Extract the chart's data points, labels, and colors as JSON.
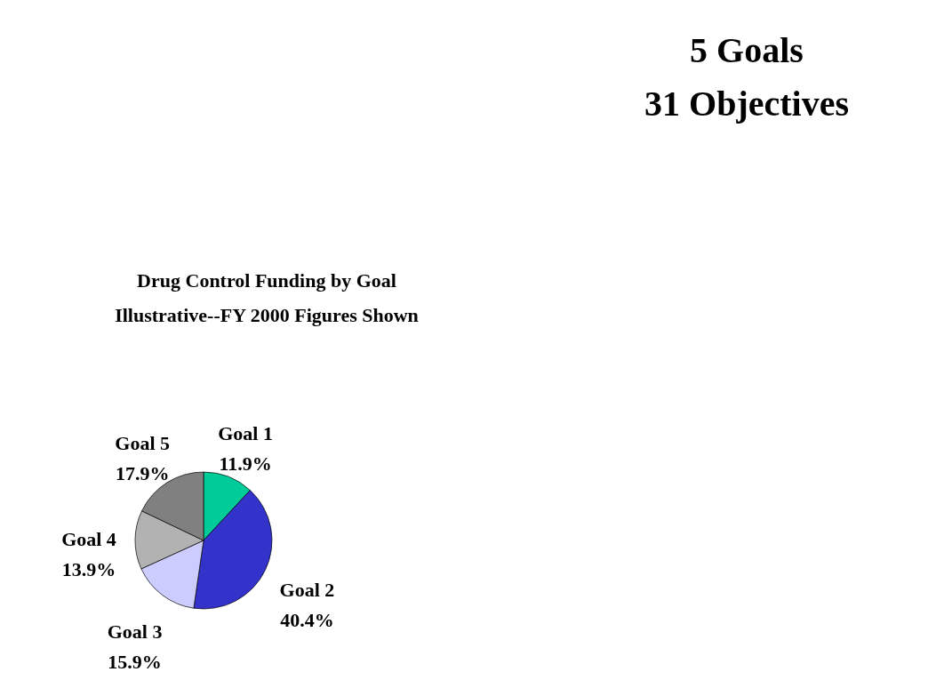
{
  "chart_data": {
    "type": "pie",
    "title": "Drug Control Funding by Goal",
    "subtitle": "Illustrative--FY 2000 Figures Shown",
    "categories": [
      "Goal 1",
      "Goal 2",
      "Goal 3",
      "Goal 4",
      "Goal 5"
    ],
    "values": [
      11.9,
      40.4,
      15.9,
      13.9,
      17.9
    ],
    "value_labels": [
      "11.9%",
      "40.4%",
      "15.9%",
      "13.9%",
      "17.9%"
    ],
    "colors": [
      "#00cc99",
      "#3333cc",
      "#ccccff",
      "#b2b2b2",
      "#808080"
    ],
    "annotations": [
      "5 Goals",
      "31 Objectives"
    ]
  }
}
